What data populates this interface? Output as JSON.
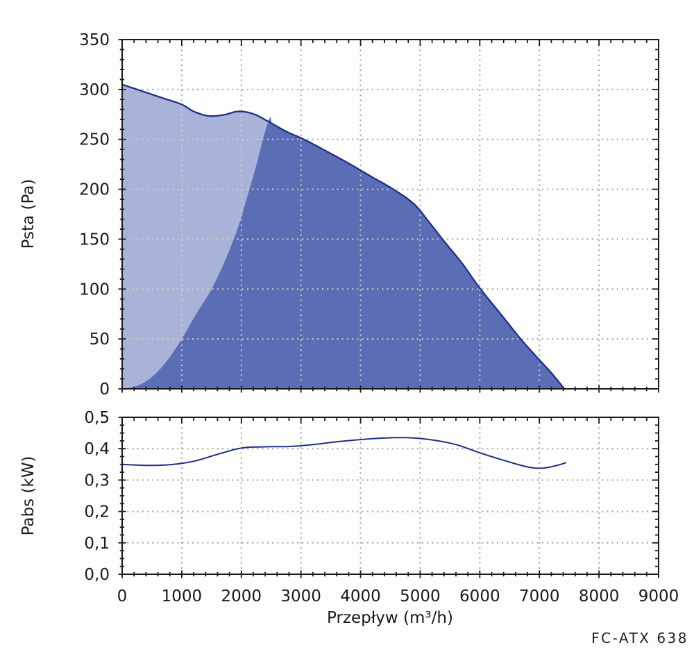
{
  "footer_label": "FC-ATX 638",
  "colors": {
    "curve": "#232e8a",
    "fill_light": "#a9b2d9",
    "fill_dark": "#5b6db4",
    "grid_on_white": "#a3a3a3",
    "grid_on_fill": "#d4cfba",
    "axis": "#1a1a1a"
  },
  "chart_data": [
    {
      "type": "area",
      "title": "",
      "xlabel": "",
      "ylabel": "Psta (Pa)",
      "xlim": [
        0,
        9000
      ],
      "ylim": [
        0,
        350
      ],
      "x_major": 1000,
      "x_minor": 200,
      "y_major": 50,
      "y_minor": 10,
      "grid": "dotted-major",
      "legend": "none",
      "x_tick_labels": [],
      "y_tick_labels": [
        "0",
        "50",
        "100",
        "150",
        "200",
        "250",
        "300",
        "350"
      ],
      "series": [
        {
          "name": "fan-curve",
          "role": "fan",
          "points": [
            [
              0,
              305
            ],
            [
              350,
              298
            ],
            [
              700,
              291
            ],
            [
              1000,
              285
            ],
            [
              1200,
              278
            ],
            [
              1450,
              273.5
            ],
            [
              1700,
              274.5
            ],
            [
              1950,
              278
            ],
            [
              2200,
              275.5
            ],
            [
              2450,
              268
            ],
            [
              2750,
              258
            ],
            [
              3050,
              250
            ],
            [
              3400,
              239
            ],
            [
              3800,
              226
            ],
            [
              4200,
              212
            ],
            [
              4550,
              200
            ],
            [
              4900,
              185
            ],
            [
              5150,
              167
            ],
            [
              5400,
              148
            ],
            [
              5700,
              126
            ],
            [
              6000,
              101
            ],
            [
              6350,
              75
            ],
            [
              6700,
              49
            ],
            [
              7000,
              29
            ],
            [
              7200,
              16
            ],
            [
              7420,
              0
            ]
          ]
        },
        {
          "name": "operating-range-boundary",
          "role": "boundary",
          "points": [
            [
              0,
              0
            ],
            [
              250,
              3
            ],
            [
              500,
              12
            ],
            [
              750,
              28
            ],
            [
              1000,
              50
            ],
            [
              1250,
              76
            ],
            [
              1500,
              100
            ],
            [
              1750,
              132
            ],
            [
              1950,
              163
            ],
            [
              2100,
              193
            ],
            [
              2250,
              224
            ],
            [
              2360,
              250
            ],
            [
              2440,
              266
            ],
            [
              2490,
              273
            ]
          ]
        }
      ]
    },
    {
      "type": "line",
      "title": "",
      "xlabel": "Przepływ (m³/h)",
      "ylabel": "Pabs (kW)",
      "xlim": [
        0,
        9000
      ],
      "ylim": [
        0,
        0.5
      ],
      "x_major": 1000,
      "x_minor": 200,
      "y_major": 0.1,
      "y_minor": 0.025,
      "grid": "dotted-major",
      "legend": "none",
      "x_tick_labels": [
        "0",
        "1000",
        "2000",
        "3000",
        "4000",
        "5000",
        "6000",
        "7000",
        "8000",
        "9000"
      ],
      "y_tick_labels": [
        "0,0",
        "0,1",
        "0,2",
        "0,3",
        "0,4",
        "0,5"
      ],
      "series": [
        {
          "name": "power-curve",
          "role": "power",
          "points": [
            [
              0,
              0.35
            ],
            [
              400,
              0.347
            ],
            [
              800,
              0.349
            ],
            [
              1200,
              0.36
            ],
            [
              1600,
              0.382
            ],
            [
              2000,
              0.402
            ],
            [
              2400,
              0.406
            ],
            [
              2800,
              0.407
            ],
            [
              3200,
              0.413
            ],
            [
              3600,
              0.422
            ],
            [
              4000,
              0.429
            ],
            [
              4400,
              0.434
            ],
            [
              4800,
              0.435
            ],
            [
              5200,
              0.428
            ],
            [
              5600,
              0.413
            ],
            [
              6000,
              0.387
            ],
            [
              6400,
              0.363
            ],
            [
              6800,
              0.342
            ],
            [
              7050,
              0.338
            ],
            [
              7300,
              0.347
            ],
            [
              7450,
              0.356
            ]
          ]
        }
      ]
    }
  ]
}
